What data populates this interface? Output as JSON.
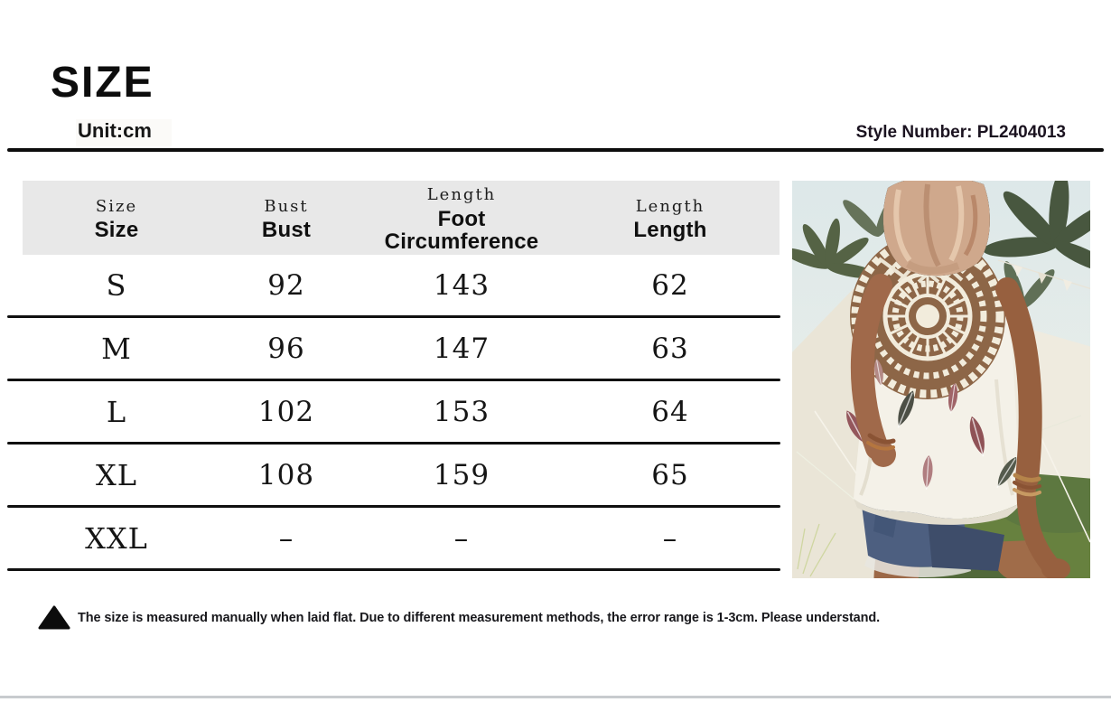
{
  "page": {
    "title": "SIZE",
    "unit_label": "Unit:cm",
    "style_number": "Style Number: PL2404013"
  },
  "size_table": {
    "columns": [
      {
        "eyebrow": "Size",
        "label": "Size"
      },
      {
        "eyebrow": "Bust",
        "label": "Bust"
      },
      {
        "eyebrow": "Length",
        "label": "Foot Circumference"
      },
      {
        "eyebrow": "Length",
        "label": "Length"
      }
    ],
    "rows": [
      {
        "cells": [
          "S",
          "92",
          "143",
          "62"
        ]
      },
      {
        "cells": [
          "M",
          "96",
          "147",
          "63"
        ]
      },
      {
        "cells": [
          "L",
          "102",
          "153",
          "64"
        ]
      },
      {
        "cells": [
          "XL",
          "108",
          "159",
          "65"
        ]
      },
      {
        "cells": [
          "XXL",
          "–",
          "–",
          "–"
        ]
      }
    ]
  },
  "note": {
    "icon": "triangle-up-icon",
    "text": "The size is measured manually when laid flat. Due to different measurement methods, the error range is 1-3cm. Please understand."
  },
  "product_photo": {
    "alt": "Back view of a woman in a white crochet-back sleeveless top with feather print and denim shorts, standing on grass in front of white tents and palm trees"
  },
  "colors": {
    "rule_black": "#0d0d0d",
    "header_gray": "#e8e8e8",
    "bottom_border_gray": "#c8cbce",
    "text_black": "#111111"
  }
}
